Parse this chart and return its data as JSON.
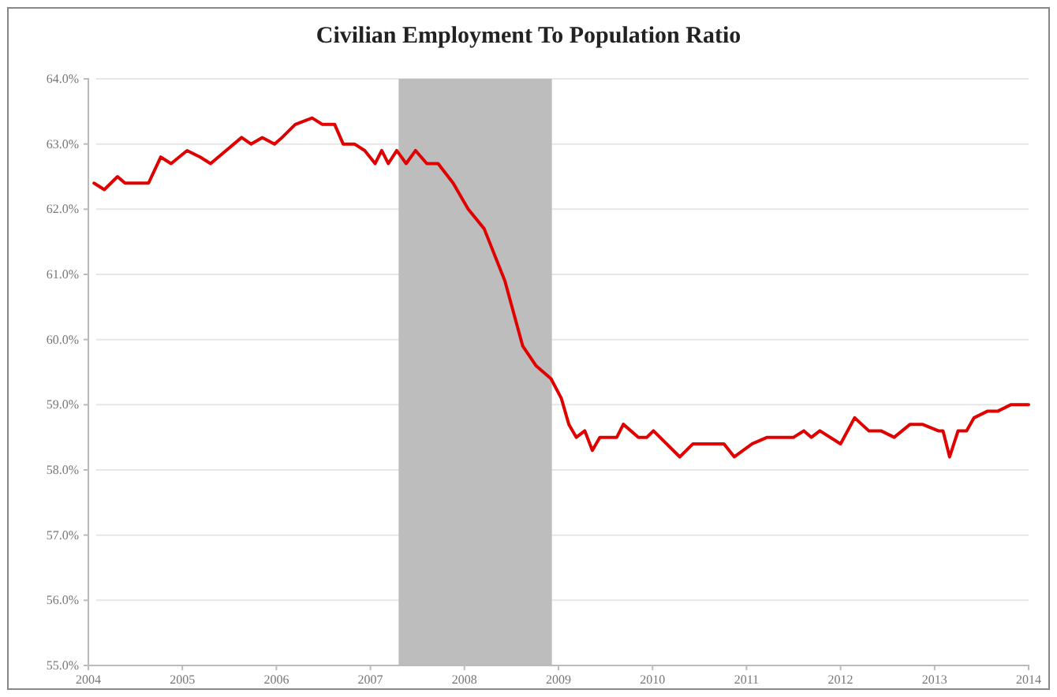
{
  "chart_data": {
    "type": "line",
    "title": "Civilian Employment To Population Ratio",
    "series": [
      {
        "color": "#e00000",
        "x": [
          2004.06,
          2004.17,
          2004.31,
          2004.39,
          2004.64,
          2004.77,
          2004.88,
          2005.05,
          2005.19,
          2005.3,
          2005.63,
          2005.73,
          2005.85,
          2005.98,
          2006.06,
          2006.2,
          2006.38,
          2006.49,
          2006.62,
          2006.71,
          2006.83,
          2006.94,
          2007.05,
          2007.12,
          2007.19,
          2007.28,
          2007.38,
          2007.48,
          2007.6,
          2007.72,
          2007.88,
          2008.04,
          2008.21,
          2008.43,
          2008.62,
          2008.76,
          2008.92,
          2009.03,
          2009.11,
          2009.19,
          2009.28,
          2009.36,
          2009.44,
          2009.62,
          2009.69,
          2009.85,
          2009.94,
          2010.01,
          2010.29,
          2010.43,
          2010.76,
          2010.87,
          2011.06,
          2011.22,
          2011.5,
          2011.61,
          2011.69,
          2011.78,
          2012.0,
          2012.15,
          2012.3,
          2012.43,
          2012.57,
          2012.74,
          2012.87,
          2013.04,
          2013.09,
          2013.16,
          2013.25,
          2013.34,
          2013.42,
          2013.56,
          2013.67,
          2013.81,
          2014.0
        ],
        "values": [
          62.4,
          62.3,
          62.5,
          62.4,
          62.4,
          62.8,
          62.7,
          62.9,
          62.8,
          62.7,
          63.1,
          63.0,
          63.1,
          63.0,
          63.1,
          63.3,
          63.4,
          63.3,
          63.3,
          63.0,
          63.0,
          62.9,
          62.7,
          62.9,
          62.7,
          62.9,
          62.7,
          62.9,
          62.7,
          62.7,
          62.4,
          62.0,
          61.7,
          60.9,
          59.9,
          59.6,
          59.4,
          59.1,
          58.7,
          58.5,
          58.6,
          58.3,
          58.5,
          58.5,
          58.7,
          58.5,
          58.5,
          58.6,
          58.2,
          58.4,
          58.4,
          58.2,
          58.4,
          58.5,
          58.5,
          58.6,
          58.5,
          58.6,
          58.4,
          58.8,
          58.6,
          58.6,
          58.5,
          58.7,
          58.7,
          58.6,
          58.6,
          58.2,
          58.6,
          58.6,
          58.8,
          58.9,
          58.9,
          59.0,
          59.0
        ]
      }
    ],
    "xlim": [
      2004,
      2014
    ],
    "xticks": [
      2004,
      2005,
      2006,
      2007,
      2008,
      2009,
      2010,
      2011,
      2012,
      2013,
      2014
    ],
    "ylim": [
      55,
      64
    ],
    "yticks": [
      {
        "value": 55,
        "label": "55.0%"
      },
      {
        "value": 56,
        "label": "56.0%"
      },
      {
        "value": 57,
        "label": "57.0%"
      },
      {
        "value": 58,
        "label": "58.0%"
      },
      {
        "value": 59,
        "label": "59.0%"
      },
      {
        "value": 60,
        "label": "60.0%"
      },
      {
        "value": 61,
        "label": "61.0%"
      },
      {
        "value": 62,
        "label": "62.0%"
      },
      {
        "value": 63,
        "label": "63.0%"
      },
      {
        "value": 64,
        "label": "64.0%"
      }
    ],
    "bands": [
      {
        "axis": "x",
        "from": 2007.3,
        "to": 2008.93,
        "color": "#bdbdbd"
      }
    ],
    "grid": "y",
    "line_style": "solid",
    "marker": "none"
  }
}
